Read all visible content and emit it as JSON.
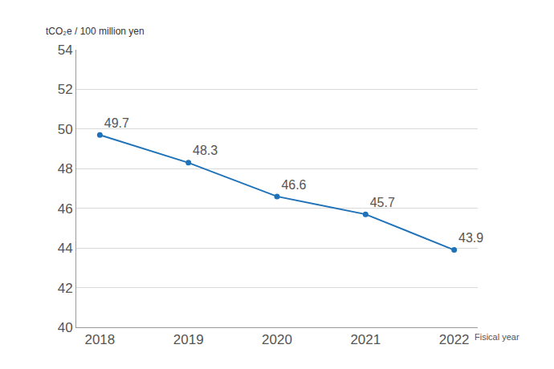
{
  "chart_data": {
    "type": "line",
    "y_label": "tCO₂e / 100 million yen",
    "x_label": "Fisical year",
    "categories": [
      "2018",
      "2019",
      "2020",
      "2021",
      "2022"
    ],
    "values": [
      49.7,
      48.3,
      46.6,
      45.7,
      43.9
    ],
    "color": "#1f72b8",
    "marker": "circle",
    "ylim": [
      40,
      54
    ],
    "yticks": [
      40,
      42,
      44,
      46,
      48,
      50,
      52,
      54
    ],
    "grid": true,
    "data_labels": true
  }
}
